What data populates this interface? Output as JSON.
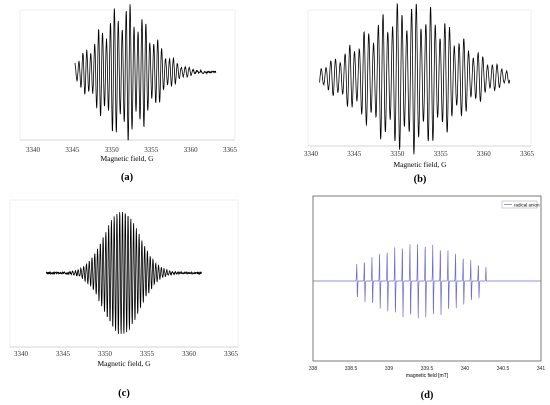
{
  "figure": {
    "panels": [
      {
        "caption": "(a)"
      },
      {
        "caption": "(b)"
      },
      {
        "caption": "(c)"
      },
      {
        "caption": "(d)"
      }
    ]
  },
  "chart_data": [
    {
      "type": "line",
      "panel": "a",
      "title": "",
      "xlabel": "Magnetic field, G",
      "ylabel": "",
      "xlim": [
        3340,
        3365
      ],
      "xticks": [
        3340,
        3345,
        3350,
        3355,
        3360,
        3365
      ],
      "grid": false,
      "signal": {
        "center": 3351.7,
        "half_width": 4.8,
        "line_spacing": 0.5,
        "min_field": 3345.3,
        "max_field": 3363.2,
        "peak_amplitude": 1.0,
        "color": "#000000"
      }
    },
    {
      "type": "line",
      "panel": "b",
      "title": "",
      "xlabel": "Magnetic field, G",
      "ylabel": "",
      "xlim": [
        3340,
        3365
      ],
      "xticks": [
        3340,
        3345,
        3350,
        3355,
        3360,
        3365
      ],
      "grid": false,
      "signal": {
        "center": 3351.5,
        "half_width": 7.5,
        "line_spacing": 0.55,
        "min_field": 3341.0,
        "max_field": 3363.0,
        "peak_amplitude": 1.0,
        "color": "#000000"
      }
    },
    {
      "type": "line",
      "panel": "c",
      "title": "",
      "xlabel": "Magnetic field, G",
      "ylabel": "",
      "xlim": [
        3340,
        3365
      ],
      "xticks": [
        3340,
        3345,
        3350,
        3355,
        3360,
        3365
      ],
      "grid": false,
      "signal": {
        "center": 3352.0,
        "half_width": 3.0,
        "line_spacing": 0.33,
        "min_field": 3343.0,
        "max_field": 3361.5,
        "peak_amplitude": 1.0,
        "color": "#000000"
      }
    },
    {
      "type": "line",
      "panel": "d",
      "title": "",
      "xlabel": "magnetic field [mT]",
      "ylabel": "",
      "xlim": [
        338,
        341
      ],
      "xticks": [
        "338",
        "338.5",
        "339",
        "339.5",
        "340",
        "340.5",
        "341"
      ],
      "grid": false,
      "legend": {
        "entries": [
          "radical anion"
        ],
        "placement": "top-right"
      },
      "signal": {
        "center": 339.38,
        "half_width": 0.9,
        "line_spacing": 0.1,
        "min_field": 338.55,
        "max_field": 340.28,
        "peak_amplitude": 1.0,
        "color": "#6b6bd6"
      }
    }
  ]
}
